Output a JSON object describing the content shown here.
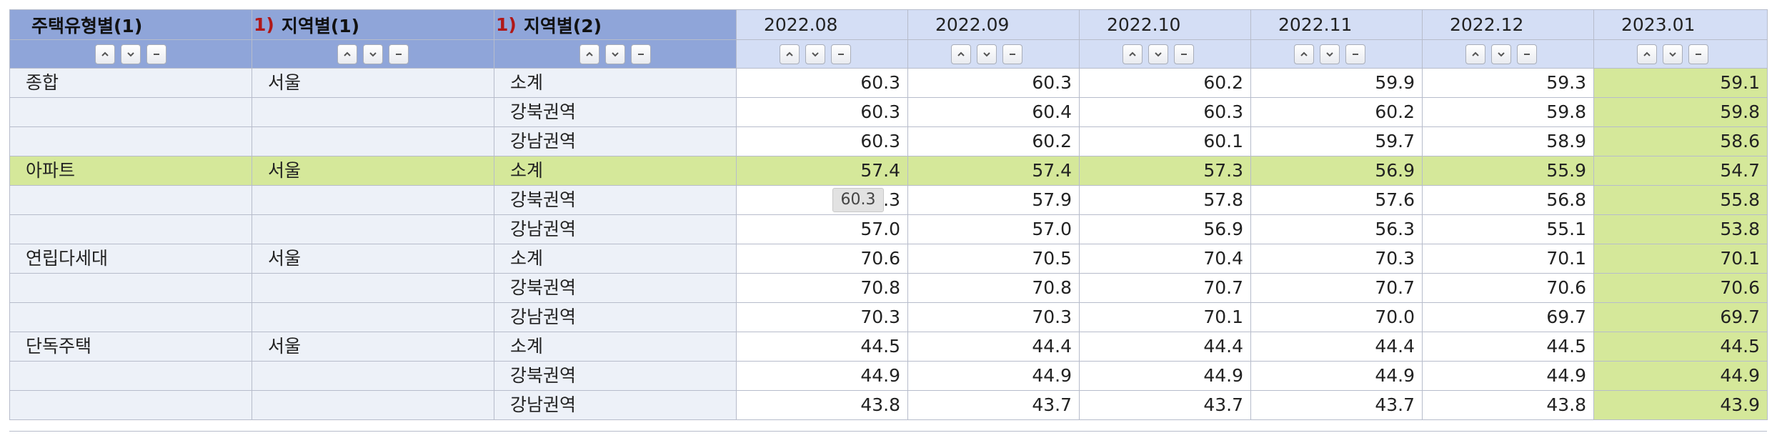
{
  "header": {
    "dims": [
      {
        "note": "",
        "label": "주택유형별(1)"
      },
      {
        "note": "1)",
        "label": "지역별(1)"
      },
      {
        "note": "1)",
        "label": "지역별(2)"
      }
    ],
    "periods": [
      "2022.08",
      "2022.09",
      "2022.10",
      "2022.11",
      "2022.12",
      "2023.01"
    ]
  },
  "controls": {
    "up_icon": "chevron-up-icon",
    "down_icon": "chevron-down-icon",
    "remove_icon": "minus-icon"
  },
  "rows": [
    {
      "type": "종합",
      "region1": "서울",
      "region2": "소계",
      "values": [
        "60.3",
        "60.3",
        "60.2",
        "59.9",
        "59.3",
        "59.1"
      ]
    },
    {
      "type": "",
      "region1": "",
      "region2": "강북권역",
      "values": [
        "60.3",
        "60.4",
        "60.3",
        "60.2",
        "59.8",
        "59.8"
      ]
    },
    {
      "type": "",
      "region1": "",
      "region2": "강남권역",
      "values": [
        "60.3",
        "60.2",
        "60.1",
        "59.7",
        "58.9",
        "58.6"
      ]
    },
    {
      "type": "아파트",
      "region1": "서울",
      "region2": "소계",
      "values": [
        "57.4",
        "57.4",
        "57.3",
        "56.9",
        "55.9",
        "54.7"
      ],
      "highlight": true
    },
    {
      "type": "",
      "region1": "",
      "region2": "강북권역",
      "values": [
        "57.3",
        "57.9",
        "57.8",
        "57.6",
        "56.8",
        "55.8"
      ]
    },
    {
      "type": "",
      "region1": "",
      "region2": "강남권역",
      "values": [
        "57.0",
        "57.0",
        "56.9",
        "56.3",
        "55.1",
        "53.8"
      ]
    },
    {
      "type": "연립다세대",
      "region1": "서울",
      "region2": "소계",
      "values": [
        "70.6",
        "70.5",
        "70.4",
        "70.3",
        "70.1",
        "70.1"
      ]
    },
    {
      "type": "",
      "region1": "",
      "region2": "강북권역",
      "values": [
        "70.8",
        "70.8",
        "70.7",
        "70.7",
        "70.6",
        "70.6"
      ]
    },
    {
      "type": "",
      "region1": "",
      "region2": "강남권역",
      "values": [
        "70.3",
        "70.3",
        "70.1",
        "70.0",
        "69.7",
        "69.7"
      ]
    },
    {
      "type": "단독주택",
      "region1": "서울",
      "region2": "소계",
      "values": [
        "44.5",
        "44.4",
        "44.4",
        "44.4",
        "44.5",
        "44.5"
      ]
    },
    {
      "type": "",
      "region1": "",
      "region2": "강북권역",
      "values": [
        "44.9",
        "44.9",
        "44.9",
        "44.9",
        "44.9",
        "44.9"
      ]
    },
    {
      "type": "",
      "region1": "",
      "region2": "강남권역",
      "values": [
        "43.8",
        "43.7",
        "43.7",
        "43.7",
        "43.8",
        "43.9"
      ]
    }
  ],
  "tooltip": {
    "text": "60.3"
  },
  "colors": {
    "dim_header_bg": "#8fa5d9",
    "period_header_bg": "#d4def5",
    "dim_cell_bg": "#edf1f8",
    "highlight_bg": "#d5e89a",
    "note_red": "#b01818"
  }
}
